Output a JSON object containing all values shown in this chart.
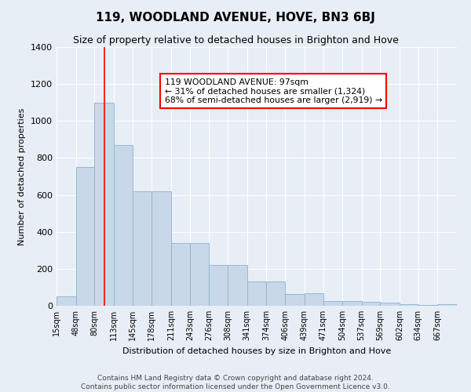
{
  "title": "119, WOODLAND AVENUE, HOVE, BN3 6BJ",
  "subtitle": "Size of property relative to detached houses in Brighton and Hove",
  "xlabel": "Distribution of detached houses by size in Brighton and Hove",
  "ylabel": "Number of detached properties",
  "footer1": "Contains HM Land Registry data © Crown copyright and database right 2024.",
  "footer2": "Contains public sector information licensed under the Open Government Licence v3.0.",
  "annotation_line1": "119 WOODLAND AVENUE: 97sqm",
  "annotation_line2": "← 31% of detached houses are smaller (1,324)",
  "annotation_line3": "68% of semi-detached houses are larger (2,919) →",
  "bar_color": "#c8d8e8",
  "bar_edge_color": "#8ab4cc",
  "property_value": 97,
  "bin_edges": [
    15,
    48,
    80,
    113,
    145,
    178,
    211,
    243,
    276,
    308,
    341,
    374,
    406,
    439,
    471,
    504,
    537,
    569,
    602,
    634,
    667,
    700
  ],
  "bar_heights": [
    50,
    750,
    1100,
    870,
    620,
    620,
    340,
    340,
    220,
    220,
    130,
    130,
    65,
    70,
    25,
    25,
    20,
    15,
    10,
    5,
    10
  ],
  "xlabels": [
    "15sqm",
    "48sqm",
    "80sqm",
    "113sqm",
    "145sqm",
    "178sqm",
    "211sqm",
    "243sqm",
    "276sqm",
    "308sqm",
    "341sqm",
    "374sqm",
    "406sqm",
    "439sqm",
    "471sqm",
    "504sqm",
    "537sqm",
    "569sqm",
    "602sqm",
    "634sqm",
    "667sqm"
  ],
  "ylim": [
    0,
    1400
  ],
  "yticks": [
    0,
    200,
    400,
    600,
    800,
    1000,
    1200,
    1400
  ],
  "bg_color": "#e8eef5",
  "plot_bg_color": "#e8eef5",
  "grid_color": "#ffffff",
  "title_fontsize": 11,
  "subtitle_fontsize": 9,
  "ylabel_fontsize": 8,
  "xlabel_fontsize": 8,
  "tick_fontsize": 7,
  "footer_fontsize": 6.5
}
